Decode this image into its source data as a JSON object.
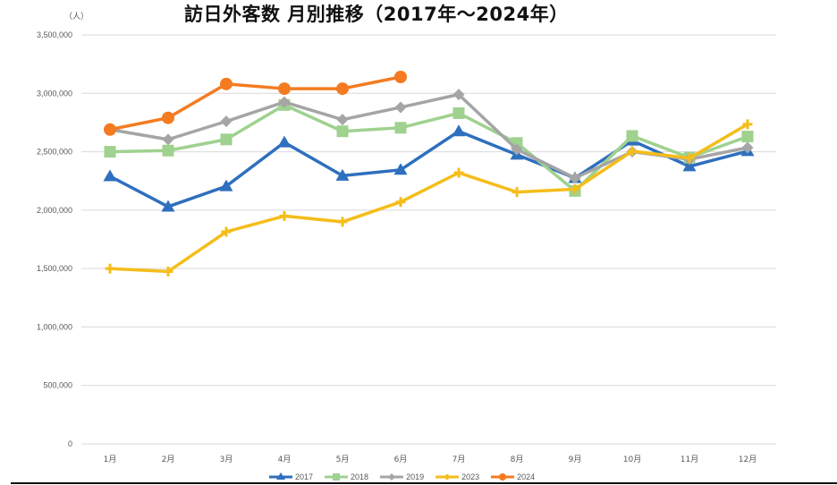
{
  "header": {
    "title": "訪日外客数 月別推移（2017年～2024年）",
    "unit_label": "（人）"
  },
  "chart_data": {
    "type": "line",
    "title": "訪日外客数 月別推移（2017年～2024年）",
    "xlabel": "",
    "ylabel": "（人）",
    "ylim": [
      0,
      3500000
    ],
    "yticks": [
      0,
      500000,
      1000000,
      1500000,
      2000000,
      2500000,
      3000000,
      3500000
    ],
    "ytick_labels": [
      "0",
      "500,000",
      "1,000,000",
      "1,500,000",
      "2,000,000",
      "2,500,000",
      "3,000,000",
      "3,500,000"
    ],
    "grid": true,
    "legend_position": "bottom",
    "categories": [
      "1月",
      "2月",
      "3月",
      "4月",
      "5月",
      "6月",
      "7月",
      "8月",
      "9月",
      "10月",
      "11月",
      "12月"
    ],
    "series": [
      {
        "name": "2017",
        "color": "#2e6fbe",
        "marker": "triangle",
        "values": [
          2290000,
          2030000,
          2205000,
          2580000,
          2295000,
          2345000,
          2675000,
          2475000,
          2275000,
          2595000,
          2375000,
          2505000
        ]
      },
      {
        "name": "2018",
        "color": "#9fd18f",
        "marker": "square",
        "values": [
          2500000,
          2510000,
          2605000,
          2900000,
          2675000,
          2705000,
          2830000,
          2575000,
          2165000,
          2635000,
          2450000,
          2630000
        ]
      },
      {
        "name": "2019",
        "color": "#a5a5a5",
        "marker": "diamond",
        "values": [
          2690000,
          2605000,
          2760000,
          2925000,
          2775000,
          2880000,
          2990000,
          2520000,
          2275000,
          2500000,
          2435000,
          2535000
        ]
      },
      {
        "name": "2023",
        "color": "#f5bd1a",
        "marker": "plus",
        "values": [
          1500000,
          1475000,
          1815000,
          1950000,
          1900000,
          2070000,
          2320000,
          2155000,
          2180000,
          2505000,
          2445000,
          2735000
        ]
      },
      {
        "name": "2024",
        "color": "#f47b20",
        "marker": "circle",
        "values": [
          2690000,
          2790000,
          3080000,
          3040000,
          3040000,
          3140000,
          null,
          null,
          null,
          null,
          null,
          null
        ]
      }
    ]
  }
}
